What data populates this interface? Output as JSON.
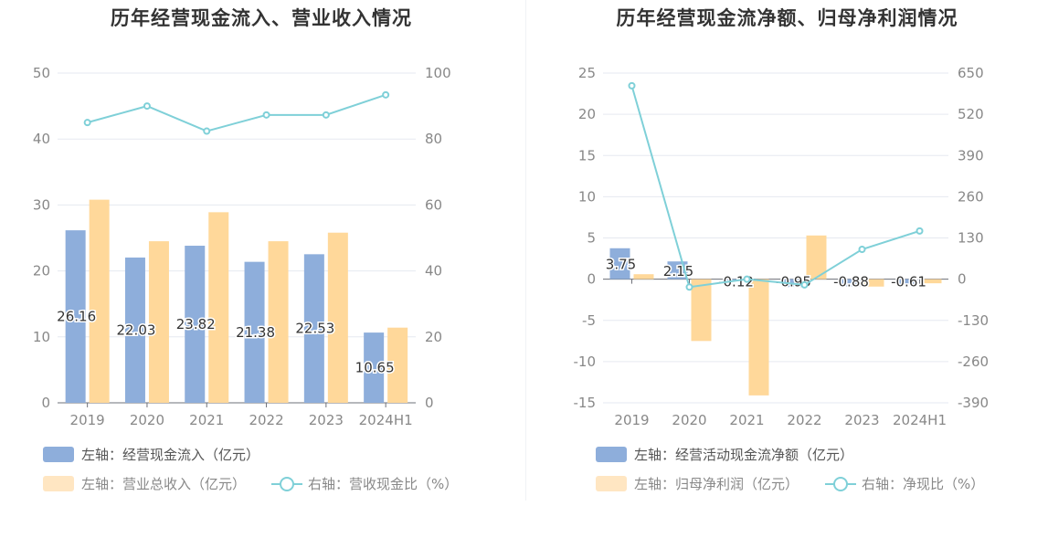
{
  "colors": {
    "primary_bar": "#8eaedb",
    "secondary_bar": "#ffd89a",
    "line": "#7fd0d8",
    "grid": "#e6e9f0"
  },
  "charts": [
    {
      "title": "历年经营现金流入、营业收入情况",
      "legend": [
        {
          "label": "左轴：经营现金流入（亿元）"
        },
        {
          "label": "左轴：营业总收入（亿元）"
        },
        {
          "label": "右轴：营收现金比（%）"
        }
      ]
    },
    {
      "title": "历年经营现金流净额、归母净利润情况",
      "legend": [
        {
          "label": "左轴：经营活动现金流净额（亿元）"
        },
        {
          "label": "左轴：归母净利润（亿元）"
        },
        {
          "label": "右轴：净现比（%）"
        }
      ]
    }
  ],
  "chart_data": [
    {
      "type": "bar",
      "title": "历年经营现金流入、营业收入情况",
      "categories": [
        "2019",
        "2020",
        "2021",
        "2022",
        "2023",
        "2024H1"
      ],
      "series": [
        {
          "name": "左轴：经营现金流入（亿元）",
          "axis": "left",
          "type": "bar",
          "values": [
            26.16,
            22.03,
            23.82,
            21.38,
            22.53,
            10.65
          ]
        },
        {
          "name": "左轴：营业总收入（亿元）",
          "axis": "left",
          "type": "bar",
          "values": [
            30.8,
            24.5,
            28.9,
            24.5,
            25.8,
            11.4
          ]
        },
        {
          "name": "右轴：营收现金比（%）",
          "axis": "right",
          "type": "line",
          "values": [
            85,
            90,
            82.4,
            87.3,
            87.3,
            93.4
          ]
        }
      ],
      "data_labels": [
        "26.16",
        "22.03",
        "23.82",
        "21.38",
        "22.53",
        "10.65"
      ],
      "left_axis": {
        "min": 0,
        "max": 50,
        "ticks": [
          "0",
          "10",
          "20",
          "30",
          "40",
          "50"
        ]
      },
      "right_axis": {
        "min": 0,
        "max": 100,
        "ticks": [
          "0",
          "20",
          "40",
          "60",
          "80",
          "100"
        ]
      },
      "grid": true,
      "legend_position": "bottom-left"
    },
    {
      "type": "bar",
      "title": "历年经营现金流净额、归母净利润情况",
      "categories": [
        "2019",
        "2020",
        "2021",
        "2022",
        "2023",
        "2024H1"
      ],
      "series": [
        {
          "name": "左轴：经营活动现金流净额（亿元）",
          "axis": "left",
          "type": "bar",
          "values": [
            3.75,
            2.15,
            -0.12,
            -0.95,
            -0.88,
            -0.61
          ]
        },
        {
          "name": "左轴：归母净利润（亿元）",
          "axis": "left",
          "type": "bar",
          "values": [
            0.6,
            -7.5,
            -14.1,
            5.3,
            -0.9,
            -0.5
          ]
        },
        {
          "name": "右轴：净现比（%）",
          "axis": "right",
          "type": "line",
          "values": [
            610,
            -25,
            0,
            -18,
            94,
            152
          ]
        }
      ],
      "data_labels": [
        "3.75",
        "2.15",
        "-0.12",
        "-0.95",
        "-0.88",
        "-0.61"
      ],
      "left_axis": {
        "min": -15,
        "max": 25,
        "ticks": [
          "-15",
          "-10",
          "-5",
          "0",
          "5",
          "10",
          "15",
          "20",
          "25"
        ]
      },
      "right_axis": {
        "min": -390,
        "max": 650,
        "ticks": [
          "-390",
          "-260",
          "-130",
          "0",
          "130",
          "260",
          "390",
          "520",
          "650"
        ]
      },
      "grid": true,
      "legend_position": "bottom-left"
    }
  ]
}
